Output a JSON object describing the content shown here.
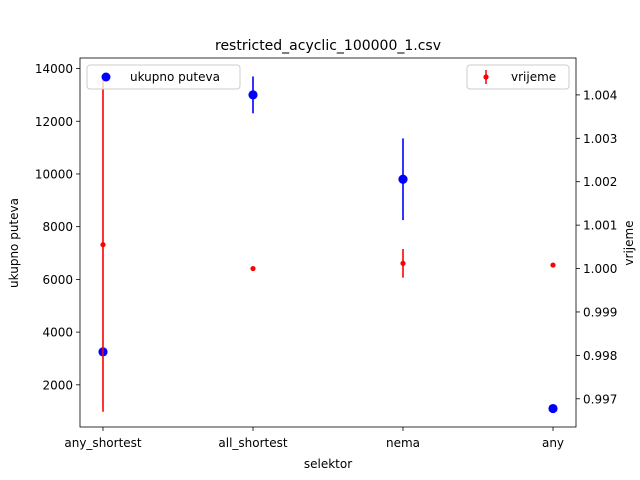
{
  "chart_data": {
    "type": "scatter",
    "title": "restricted_acyclic_100000_1.csv",
    "xlabel": "selektor",
    "ylabel_left": "ukupno puteva",
    "ylabel_right": "vrijeme",
    "categories": [
      "any_shortest",
      "all_shortest",
      "nema",
      "any"
    ],
    "ylim_left": [
      400,
      14400
    ],
    "ylim_right": [
      0.99635,
      1.00485
    ],
    "yticks_left": [
      2000,
      4000,
      6000,
      8000,
      10000,
      12000,
      14000
    ],
    "yticks_left_labels": [
      "2000",
      "4000",
      "6000",
      "8000",
      "10000",
      "12000",
      "14000"
    ],
    "yticks_right": [
      0.997,
      0.998,
      0.999,
      1.0,
      1.001,
      1.002,
      1.003,
      1.004
    ],
    "yticks_right_labels": [
      "0.997",
      "0.998",
      "0.999",
      "1.000",
      "1.001",
      "1.002",
      "1.003",
      "1.004"
    ],
    "grid": false,
    "series": [
      {
        "name": "ukupno puteva",
        "axis": "left",
        "color": "#0000ff",
        "values": [
          3250,
          13000,
          9800,
          1100
        ],
        "errors": [
          null,
          700,
          1550,
          null
        ]
      },
      {
        "name": "vrijeme",
        "axis": "right",
        "color": "#ff0000",
        "values": [
          1.00055,
          1.0,
          1.00012,
          1.00008
        ],
        "errors": [
          0.00385,
          null,
          0.00033,
          null
        ]
      }
    ],
    "legend_left": {
      "label": "ukupno puteva",
      "placement": "upper-left"
    },
    "legend_right": {
      "label": "vrijeme",
      "placement": "upper-right"
    }
  }
}
